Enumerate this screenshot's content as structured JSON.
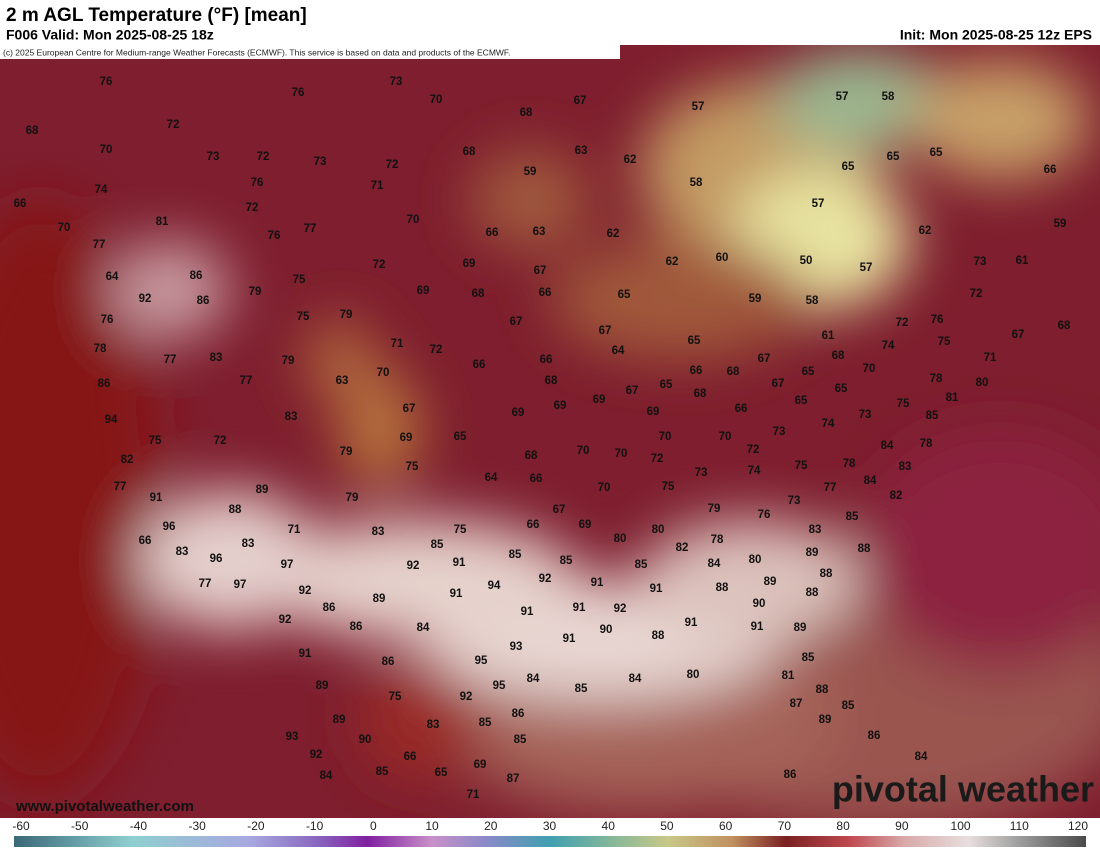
{
  "header": {
    "title": "2 m AGL Temperature (°F) [mean]",
    "valid": "F006 Valid: Mon 2025-08-25 18z",
    "init": "Init: Mon 2025-08-25 12z EPS",
    "copyright": "(c) 2025 European Centre for Medium-range Weather Forecasts (ECMWF). This service is based on data and products of the ECMWF."
  },
  "footer": {
    "website": "www.pivotalweather.com",
    "logo": "pivotal weather"
  },
  "colorbar": {
    "ticks": [
      -60,
      -50,
      -40,
      -30,
      -20,
      -10,
      0,
      10,
      20,
      30,
      40,
      50,
      60,
      70,
      80,
      90,
      100,
      110,
      120
    ]
  },
  "map": {
    "labels": [
      76,
      73,
      76,
      70,
      68,
      67,
      57,
      58,
      57,
      68,
      72,
      70,
      73,
      72,
      73,
      72,
      68,
      63,
      62,
      65,
      65,
      65,
      66,
      74,
      76,
      71,
      59,
      58,
      66,
      81,
      72,
      70,
      57,
      59,
      70,
      77,
      76,
      77,
      66,
      63,
      62,
      62,
      86,
      75,
      72,
      69,
      67,
      62,
      60,
      50,
      57,
      73,
      61,
      64,
      92,
      86,
      79,
      69,
      68,
      66,
      65,
      59,
      58,
      72,
      76,
      75,
      79,
      67,
      67,
      72,
      76,
      67,
      68,
      78,
      77,
      83,
      79,
      71,
      72,
      64,
      65,
      61,
      74,
      75,
      86,
      77,
      63,
      70,
      66,
      66,
      66,
      68,
      67,
      68,
      70,
      71,
      68,
      69,
      67,
      65,
      68,
      67,
      65,
      65,
      78,
      80,
      94,
      83,
      67,
      69,
      69,
      69,
      66,
      65,
      75,
      81,
      85,
      75,
      72,
      69,
      65,
      70,
      70,
      73,
      74,
      73,
      78,
      82,
      79,
      75,
      68,
      70,
      70,
      72,
      72,
      84,
      83,
      77,
      89,
      64,
      66,
      73,
      74,
      75,
      78,
      84,
      91,
      70,
      75,
      77,
      82,
      88,
      79,
      67,
      79,
      76,
      73,
      85,
      96,
      71,
      83,
      75,
      66,
      69,
      80,
      80,
      78,
      83,
      66,
      85,
      82,
      80,
      89,
      88,
      83,
      96,
      83,
      91,
      85,
      85,
      85,
      84,
      89,
      88,
      77,
      97,
      97,
      92,
      94,
      92,
      91,
      91,
      88,
      88,
      92,
      89,
      91,
      90,
      92,
      86,
      91,
      91,
      92,
      91,
      91,
      89,
      86,
      84,
      91,
      90,
      88,
      91,
      86,
      95,
      93,
      85,
      89,
      95,
      84,
      85,
      84,
      80,
      81,
      88,
      75,
      92,
      87,
      85,
      89,
      83,
      86,
      85,
      89,
      93,
      90,
      85,
      86,
      92,
      66,
      69,
      84,
      84,
      85,
      65,
      87,
      86,
      71
    ]
  }
}
